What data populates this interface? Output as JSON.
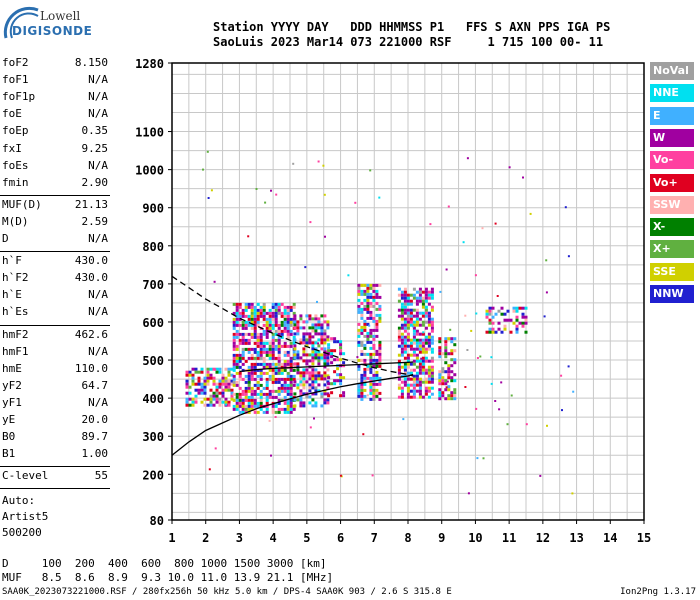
{
  "logo": {
    "line1": "Lowell",
    "line2": "DIGISONDE"
  },
  "header": {
    "line1": "Station YYYY DAY   DDD HHMMSS P1   FFS S AXN PPS IGA PS",
    "line2": "SaoLuis 2023 Mar14 073 221000 RSF     1 715 100 00- 11"
  },
  "params": [
    {
      "k": "foF2",
      "v": "8.150"
    },
    {
      "k": "foF1",
      "v": "N/A"
    },
    {
      "k": "foF1p",
      "v": "N/A"
    },
    {
      "k": "foE",
      "v": "N/A"
    },
    {
      "k": "foEp",
      "v": "0.35"
    },
    {
      "k": "fxI",
      "v": "9.25"
    },
    {
      "k": "foEs",
      "v": "N/A"
    },
    {
      "k": "fmin",
      "v": "2.90"
    },
    {
      "k": "MUF(D)",
      "v": "21.13"
    },
    {
      "k": "M(D)",
      "v": "2.59"
    },
    {
      "k": "D",
      "v": "N/A"
    },
    {
      "k": "h`F",
      "v": "430.0"
    },
    {
      "k": "h`F2",
      "v": "430.0"
    },
    {
      "k": "h`E",
      "v": "N/A"
    },
    {
      "k": "h`Es",
      "v": "N/A"
    },
    {
      "k": "hmF2",
      "v": "462.6"
    },
    {
      "k": "hmF1",
      "v": "N/A"
    },
    {
      "k": "hmE",
      "v": "110.0"
    },
    {
      "k": "yF2",
      "v": "64.7"
    },
    {
      "k": "yF1",
      "v": "N/A"
    },
    {
      "k": "yE",
      "v": "20.0"
    },
    {
      "k": "B0",
      "v": "89.7"
    },
    {
      "k": "B1",
      "v": "1.00"
    },
    {
      "k": "C-level",
      "v": "55"
    }
  ],
  "auto": [
    "Auto:",
    "Artist5",
    "500200"
  ],
  "legend": [
    {
      "label": "NoVal",
      "color": "#a0a0a0"
    },
    {
      "label": "NNE",
      "color": "#00e0f0"
    },
    {
      "label": "E",
      "color": "#40b0ff"
    },
    {
      "label": "W",
      "color": "#a000a0"
    },
    {
      "label": "Vo-",
      "color": "#ff40a0"
    },
    {
      "label": "Vo+",
      "color": "#e00020"
    },
    {
      "label": "SSW",
      "color": "#ffb0b0"
    },
    {
      "label": "X-",
      "color": "#008000"
    },
    {
      "label": "X+",
      "color": "#60b040"
    },
    {
      "label": "SSE",
      "color": "#d0d000"
    },
    {
      "label": "NNW",
      "color": "#2020d0"
    }
  ],
  "footer": {
    "line1": "D     100  200  400  600  800 1000 1500 3000 [km]",
    "line2": "MUF   8.5  8.6  8.9  9.3 10.0 11.0 13.9 21.1 [MHz]",
    "line3": "SAA0K_2023073221000.RSF / 280fx256h 50 kHz 5.0 km / DPS-4 SAA0K 903 / 2.6 S 315.8 E",
    "version": "Ion2Png 1.3.17"
  },
  "chart_data": {
    "type": "scatter",
    "title": "",
    "xlabel": "",
    "ylabel": "",
    "x_unit": "MHz",
    "y_unit": "km",
    "xlim": [
      1,
      15
    ],
    "ylim": [
      80,
      1280
    ],
    "x_ticks": [
      1,
      2,
      3,
      4,
      5,
      6,
      7,
      8,
      9,
      10,
      11,
      12,
      13,
      14,
      15
    ],
    "y_ticks": [
      80,
      200,
      300,
      400,
      500,
      600,
      700,
      800,
      900,
      1000,
      1100,
      1280
    ],
    "grid": true,
    "legend_position": "right",
    "echo_clusters": [
      {
        "x_range": [
          1.4,
          2.8
        ],
        "y_range": [
          380,
          480
        ],
        "density": 0.55
      },
      {
        "x_range": [
          2.8,
          4.6
        ],
        "y_range": [
          360,
          650
        ],
        "density": 0.7
      },
      {
        "x_range": [
          4.6,
          5.6
        ],
        "y_range": [
          380,
          620
        ],
        "density": 0.55
      },
      {
        "x_range": [
          5.6,
          6.1
        ],
        "y_range": [
          410,
          560
        ],
        "density": 0.45
      },
      {
        "x_range": [
          6.5,
          7.2
        ],
        "y_range": [
          400,
          700
        ],
        "density": 0.6
      },
      {
        "x_range": [
          7.7,
          8.7
        ],
        "y_range": [
          400,
          690
        ],
        "density": 0.65
      },
      {
        "x_range": [
          8.9,
          9.4
        ],
        "y_range": [
          400,
          560
        ],
        "density": 0.55
      },
      {
        "x_range": [
          10.3,
          11.5
        ],
        "y_range": [
          575,
          640
        ],
        "density": 0.5
      }
    ],
    "profile_curves": [
      {
        "name": "profile",
        "style": "solid",
        "x": [
          1.0,
          1.5,
          2.0,
          2.5,
          3.0,
          3.5,
          4.0,
          4.5,
          5.0,
          5.5,
          6.0,
          6.5,
          7.0,
          7.5,
          8.0,
          8.15
        ],
        "y": [
          250,
          285,
          315,
          335,
          355,
          372,
          385,
          398,
          410,
          420,
          430,
          438,
          445,
          452,
          458,
          462
        ]
      },
      {
        "name": "profile-upper",
        "style": "dashed",
        "x": [
          1.0,
          1.5,
          2.0,
          2.5,
          3.0,
          3.5,
          4.0,
          4.5,
          5.0,
          5.5,
          6.0,
          6.5,
          7.0,
          7.5,
          8.0,
          8.15
        ],
        "y": [
          720,
          690,
          660,
          635,
          610,
          590,
          570,
          552,
          535,
          520,
          505,
          492,
          480,
          470,
          462,
          458
        ]
      },
      {
        "name": "virtual-height",
        "style": "solid",
        "x": [
          3.0,
          3.5,
          4.0,
          4.5,
          5.0,
          5.5,
          6.0,
          6.5,
          7.0,
          7.5,
          8.0,
          8.15
        ],
        "y": [
          470,
          475,
          478,
          480,
          482,
          484,
          486,
          488,
          490,
          492,
          494,
          495
        ]
      }
    ]
  }
}
